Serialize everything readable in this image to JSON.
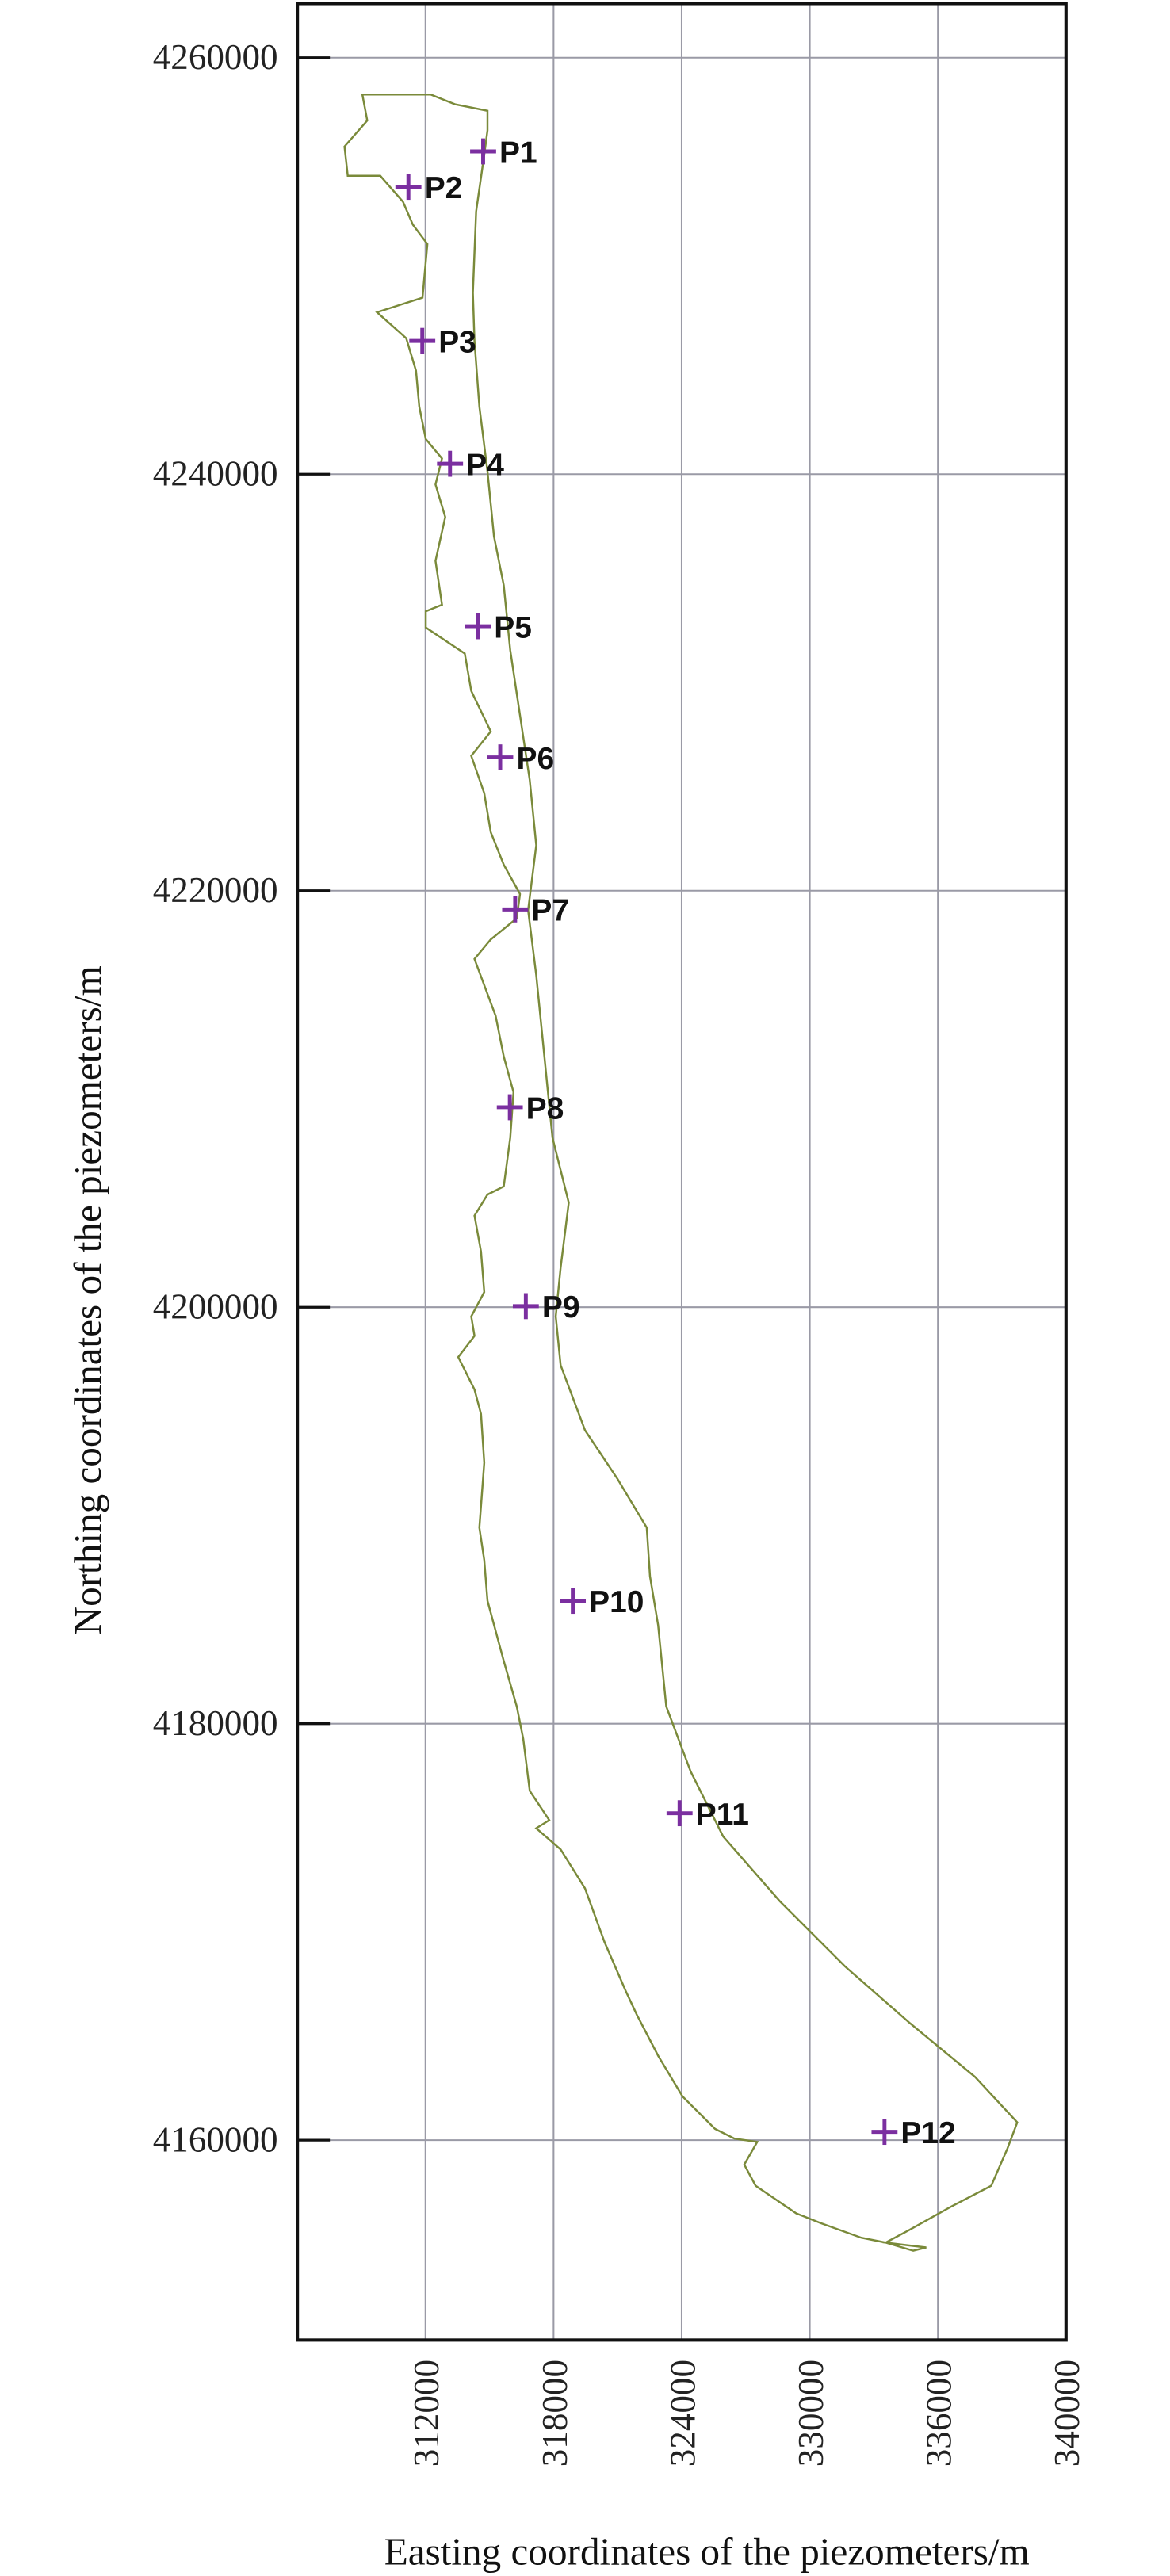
{
  "chart_data": {
    "type": "scatter",
    "xlabel": "Easting coordinates of the piezometers/m",
    "ylabel": "Northing coordinates of the piezometers/m",
    "xlim": [
      306000,
      342000
    ],
    "ylim": [
      4150400,
      4262600
    ],
    "x_tick_labels": [
      "312000",
      "318000",
      "324000",
      "330000",
      "336000",
      "340000"
    ],
    "y_ticks": [
      4260000,
      4240000,
      4220000,
      4200000,
      4180000,
      4160000
    ],
    "y_tick_labels": [
      "4260000",
      "4240000",
      "4220000",
      "4200000",
      "4180000",
      "4160000"
    ],
    "grid": true,
    "marker": "plus",
    "colors": {
      "marker": "#7b2fa0",
      "outline": "#7a8a3a",
      "grid": "#9a9aa6",
      "axis": "#111111"
    },
    "points": [
      {
        "label": "P1",
        "x": 314700,
        "y": 4255500
      },
      {
        "label": "P2",
        "x": 311200,
        "y": 4253800
      },
      {
        "label": "P3",
        "x": 311850,
        "y": 4246400
      },
      {
        "label": "P4",
        "x": 313150,
        "y": 4240500
      },
      {
        "label": "P5",
        "x": 314450,
        "y": 4232700
      },
      {
        "label": "P6",
        "x": 315500,
        "y": 4226400
      },
      {
        "label": "P7",
        "x": 316200,
        "y": 4219100
      },
      {
        "label": "P8",
        "x": 315950,
        "y": 4209600
      },
      {
        "label": "P9",
        "x": 316700,
        "y": 4200050
      },
      {
        "label": "P10",
        "x": 318900,
        "y": 4185900
      },
      {
        "label": "P11",
        "x": 323900,
        "y": 4175700
      },
      {
        "label": "P12",
        "x": 333500,
        "y": 4160400
      }
    ]
  }
}
